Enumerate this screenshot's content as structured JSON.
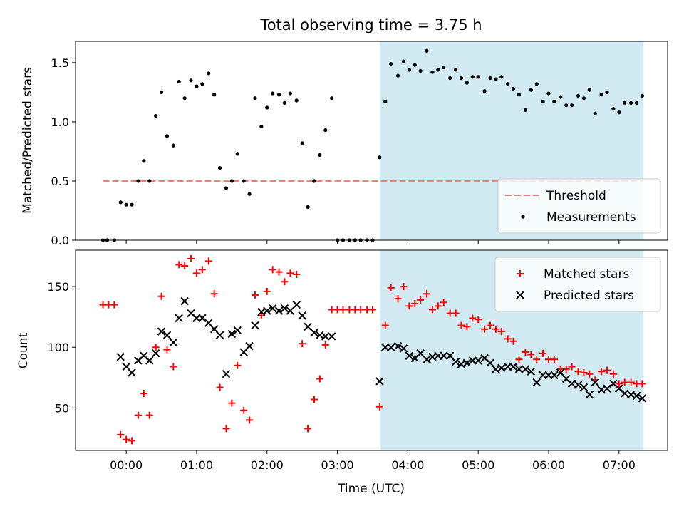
{
  "chart_data": {
    "title": "Total observing time = 3.75 h",
    "xlabel": "Time (UTC)",
    "x_unit": "hours UTC",
    "x_tick_labels": [
      "00:00",
      "01:00",
      "02:00",
      "03:00",
      "04:00",
      "05:00",
      "06:00",
      "07:00"
    ],
    "x_tick_values": [
      0,
      1,
      2,
      3,
      4,
      5,
      6,
      7
    ],
    "xlim": [
      -0.72,
      7.69
    ],
    "observing_window": {
      "start": 3.6,
      "end": 7.35,
      "color": "#add8e6"
    },
    "panels": [
      {
        "type": "scatter",
        "ylabel": "Matched/Predicted stars",
        "ylim": [
          0,
          1.68
        ],
        "y_tick_values": [
          0,
          0.5,
          1,
          1.5
        ],
        "y_tick_labels": [
          "0.0",
          "0.5",
          "1.0",
          "1.5"
        ],
        "legend_position": "lower-right",
        "threshold": {
          "name": "Threshold",
          "value": 0.5,
          "x_range": [
            -0.33,
            7.35
          ],
          "color": "#f08080"
        },
        "series": [
          {
            "name": "Measurements",
            "color": "#000000",
            "marker": "dot",
            "x": [
              -0.33,
              -0.27,
              -0.17,
              -0.08,
              0.0,
              0.08,
              0.17,
              0.25,
              0.33,
              0.42,
              0.5,
              0.58,
              0.67,
              0.75,
              0.83,
              0.92,
              1.0,
              1.08,
              1.17,
              1.25,
              1.33,
              1.42,
              1.5,
              1.58,
              1.67,
              1.75,
              1.83,
              1.92,
              2.0,
              2.08,
              2.17,
              2.25,
              2.33,
              2.42,
              2.5,
              2.58,
              2.67,
              2.75,
              2.83,
              2.92,
              3.0,
              3.08,
              3.17,
              3.25,
              3.33,
              3.42,
              3.5,
              3.6,
              3.68,
              3.76,
              3.86,
              3.94,
              4.02,
              4.1,
              4.18,
              4.27,
              4.35,
              4.43,
              4.51,
              4.6,
              4.68,
              4.76,
              4.84,
              4.92,
              5.0,
              5.09,
              5.17,
              5.25,
              5.33,
              5.42,
              5.5,
              5.58,
              5.67,
              5.75,
              5.83,
              5.92,
              6.0,
              6.08,
              6.17,
              6.25,
              6.33,
              6.42,
              6.5,
              6.58,
              6.66,
              6.75,
              6.83,
              6.92,
              7.0,
              7.08,
              7.17,
              7.25,
              7.33
            ],
            "y": [
              0,
              0,
              0,
              0.32,
              0.3,
              0.3,
              0.5,
              0.67,
              0.5,
              1.05,
              1.25,
              0.88,
              0.8,
              1.34,
              1.2,
              1.35,
              1.3,
              1.32,
              1.41,
              1.23,
              0.61,
              0.44,
              0.5,
              0.73,
              0.5,
              0.39,
              1.2,
              0.96,
              1.12,
              1.24,
              1.23,
              1.16,
              1.24,
              1.18,
              0.82,
              0.28,
              0.5,
              0.72,
              0.93,
              1.2,
              0,
              0,
              0,
              0,
              0,
              0,
              0,
              0.7,
              1.17,
              1.49,
              1.39,
              1.51,
              1.44,
              1.48,
              1.43,
              1.6,
              1.42,
              1.44,
              1.46,
              1.37,
              1.44,
              1.37,
              1.33,
              1.38,
              1.38,
              1.26,
              1.37,
              1.36,
              1.38,
              1.32,
              1.28,
              1.23,
              1.1,
              1.27,
              1.32,
              1.17,
              1.24,
              1.17,
              1.21,
              1.14,
              1.14,
              1.22,
              1.2,
              1.27,
              1.07,
              1.23,
              1.25,
              1.11,
              1.08,
              1.16,
              1.16,
              1.16,
              1.22
            ]
          }
        ]
      },
      {
        "type": "scatter",
        "ylabel": "Count",
        "ylim": [
          15,
          180
        ],
        "y_tick_values": [
          50,
          100,
          150
        ],
        "y_tick_labels": [
          "50",
          "100",
          "150"
        ],
        "legend_position": "upper-right",
        "series": [
          {
            "name": "Matched stars",
            "color": "#ff0000",
            "marker": "plus",
            "x": [
              -0.33,
              -0.25,
              -0.17,
              -0.08,
              0.0,
              0.08,
              0.17,
              0.25,
              0.33,
              0.42,
              0.5,
              0.58,
              0.67,
              0.75,
              0.83,
              0.92,
              1.0,
              1.08,
              1.17,
              1.25,
              1.33,
              1.42,
              1.5,
              1.58,
              1.67,
              1.75,
              1.83,
              1.92,
              2.0,
              2.08,
              2.17,
              2.25,
              2.33,
              2.42,
              2.5,
              2.58,
              2.67,
              2.75,
              2.83,
              2.92,
              3.0,
              3.08,
              3.17,
              3.25,
              3.33,
              3.42,
              3.5,
              3.6,
              3.68,
              3.76,
              3.86,
              3.94,
              4.02,
              4.1,
              4.18,
              4.27,
              4.35,
              4.43,
              4.51,
              4.6,
              4.68,
              4.76,
              4.84,
              4.92,
              5.0,
              5.09,
              5.17,
              5.25,
              5.33,
              5.42,
              5.5,
              5.58,
              5.67,
              5.75,
              5.83,
              5.92,
              6.0,
              6.08,
              6.17,
              6.25,
              6.33,
              6.42,
              6.5,
              6.58,
              6.66,
              6.75,
              6.83,
              6.92,
              7.0,
              7.08,
              7.17,
              7.25,
              7.33
            ],
            "y": [
              135,
              135,
              135,
              28,
              24,
              23,
              44,
              62,
              44,
              100,
              142,
              98,
              84,
              168,
              167,
              173,
              161,
              164,
              171,
              144,
              67,
              33,
              54,
              85,
              48,
              40,
              143,
              126,
              146,
              164,
              162,
              154,
              161,
              160,
              103,
              33,
              57,
              74,
              102,
              131,
              131,
              131,
              131,
              131,
              131,
              131,
              131,
              51,
              118,
              149,
              140,
              150,
              134,
              136,
              139,
              144,
              131,
              134,
              137,
              128,
              128,
              118,
              117,
              124,
              123,
              115,
              118,
              115,
              113,
              107,
              105,
              90,
              96,
              94,
              90,
              95,
              90,
              90,
              82,
              82,
              84,
              80,
              79,
              78,
              73,
              80,
              81,
              78,
              70,
              71,
              71,
              70,
              70
            ]
          },
          {
            "name": "Predicted stars",
            "color": "#000000",
            "marker": "x",
            "x": [
              -0.08,
              0.0,
              0.08,
              0.17,
              0.25,
              0.33,
              0.42,
              0.5,
              0.58,
              0.67,
              0.75,
              0.83,
              0.92,
              1.0,
              1.08,
              1.17,
              1.25,
              1.33,
              1.42,
              1.5,
              1.58,
              1.67,
              1.75,
              1.83,
              1.92,
              2.0,
              2.08,
              2.17,
              2.25,
              2.33,
              2.42,
              2.5,
              2.58,
              2.67,
              2.75,
              2.83,
              2.92,
              3.6,
              3.68,
              3.76,
              3.86,
              3.94,
              4.02,
              4.1,
              4.18,
              4.27,
              4.35,
              4.43,
              4.51,
              4.6,
              4.68,
              4.76,
              4.84,
              4.92,
              5.0,
              5.09,
              5.17,
              5.25,
              5.33,
              5.42,
              5.5,
              5.58,
              5.67,
              5.75,
              5.83,
              5.92,
              6.0,
              6.08,
              6.17,
              6.25,
              6.33,
              6.42,
              6.5,
              6.58,
              6.66,
              6.75,
              6.83,
              6.92,
              7.0,
              7.08,
              7.17,
              7.25,
              7.33
            ],
            "y": [
              92,
              84,
              79,
              89,
              93,
              89,
              95,
              113,
              110,
              104,
              124,
              138,
              128,
              124,
              124,
              120,
              115,
              110,
              78,
              111,
              114,
              96,
              101,
              118,
              129,
              130,
              132,
              130,
              132,
              130,
              135,
              126,
              117,
              112,
              110,
              109,
              109,
              72,
              100,
              100,
              101,
              99,
              93,
              91,
              95,
              90,
              92,
              93,
              93,
              93,
              88,
              86,
              87,
              89,
              89,
              91,
              87,
              82,
              83,
              84,
              84,
              82,
              82,
              80,
              71,
              77,
              77,
              77,
              79,
              74,
              70,
              69,
              67,
              61,
              71,
              65,
              66,
              70,
              66,
              62,
              61,
              60,
              58
            ]
          }
        ]
      }
    ]
  }
}
